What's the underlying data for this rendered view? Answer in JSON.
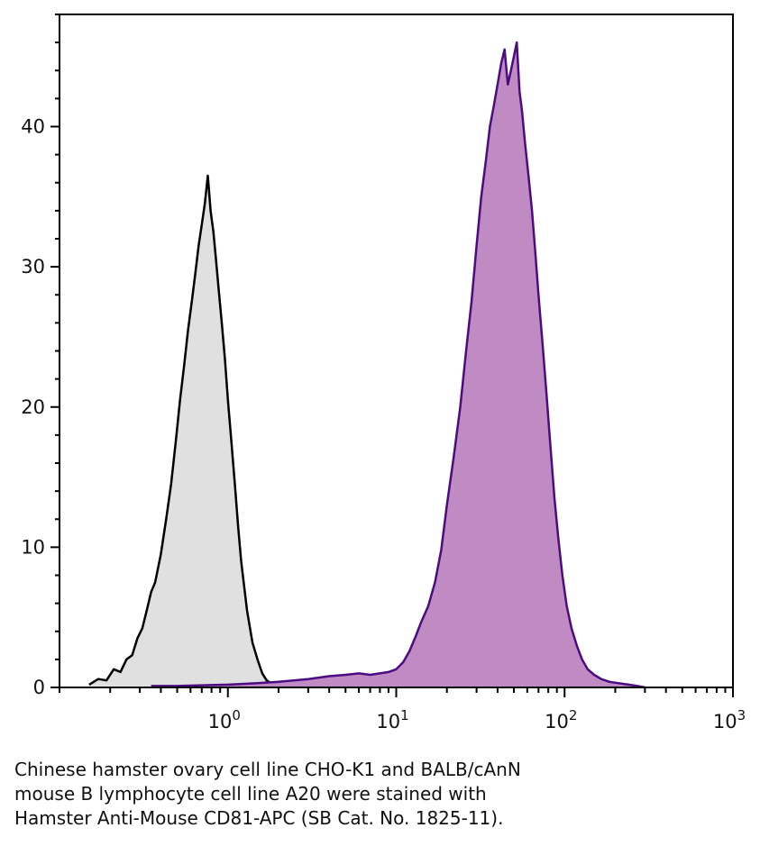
{
  "chart_data": {
    "type": "area",
    "title": "",
    "xlabel": "",
    "ylabel": "",
    "xscale": "log",
    "xlim": [
      0.1,
      1000
    ],
    "ylim": [
      0,
      48
    ],
    "grid": false,
    "legend": "none",
    "x_ticks": [
      {
        "value": 1,
        "base": "10",
        "exp": "0"
      },
      {
        "value": 10,
        "base": "10",
        "exp": "1"
      },
      {
        "value": 100,
        "base": "10",
        "exp": "2"
      },
      {
        "value": 1000,
        "base": "10",
        "exp": "3"
      }
    ],
    "y_ticks": [
      {
        "value": 0,
        "label": "0"
      },
      {
        "value": 10,
        "label": "10"
      },
      {
        "value": 20,
        "label": "20"
      },
      {
        "value": 30,
        "label": "30"
      },
      {
        "value": 40,
        "label": "40"
      }
    ],
    "series": [
      {
        "fill": "#e0e0e0",
        "stroke": "#000000",
        "x": [
          0.15,
          0.17,
          0.19,
          0.21,
          0.23,
          0.25,
          0.27,
          0.29,
          0.31,
          0.33,
          0.35,
          0.37,
          0.4,
          0.43,
          0.46,
          0.49,
          0.52,
          0.55,
          0.58,
          0.61,
          0.64,
          0.67,
          0.7,
          0.73,
          0.76,
          0.79,
          0.82,
          0.85,
          0.88,
          0.92,
          0.96,
          1.0,
          1.05,
          1.1,
          1.15,
          1.2,
          1.3,
          1.4,
          1.5,
          1.6,
          1.7,
          1.8,
          2.0
        ],
        "y": [
          0.2,
          0.6,
          0.5,
          1.3,
          1.1,
          2.0,
          2.3,
          3.5,
          4.2,
          5.5,
          6.8,
          7.5,
          9.5,
          12.0,
          14.5,
          17.5,
          20.5,
          23.0,
          25.5,
          27.5,
          29.5,
          31.5,
          33.0,
          34.5,
          36.5,
          34.0,
          32.5,
          30.5,
          28.5,
          26.0,
          23.5,
          20.5,
          17.5,
          14.5,
          11.5,
          9.0,
          5.5,
          3.2,
          2.0,
          1.0,
          0.5,
          0.3,
          0.1
        ]
      },
      {
        "fill": "#c08bc3",
        "stroke": "#4b0c82",
        "x": [
          0.35,
          0.5,
          1.0,
          1.5,
          2.0,
          3.0,
          4.0,
          5.0,
          6.0,
          7.0,
          8.0,
          9.0,
          10.0,
          11.0,
          12.0,
          13.0,
          14.0,
          15.5,
          17.0,
          18.5,
          20.0,
          22.0,
          24.0,
          26.0,
          28.0,
          30.0,
          32.0,
          34.0,
          36.0,
          38.0,
          40.0,
          42.0,
          44.0,
          46.0,
          48.0,
          50.0,
          52.0,
          54.0,
          56.0,
          58.0,
          61.0,
          64.0,
          67.0,
          70.0,
          74.0,
          78.0,
          82.0,
          87.0,
          92.0,
          97.0,
          103.0,
          110.0,
          118.0,
          127.0,
          137.0,
          150.0,
          165.0,
          185.0,
          210.0,
          240.0,
          270.0,
          300.0
        ],
        "y": [
          0.1,
          0.1,
          0.2,
          0.3,
          0.4,
          0.6,
          0.8,
          0.9,
          1.0,
          0.9,
          1.0,
          1.1,
          1.3,
          1.8,
          2.6,
          3.6,
          4.6,
          5.8,
          7.5,
          9.8,
          13.0,
          16.5,
          20.0,
          24.0,
          27.5,
          31.5,
          35.0,
          37.5,
          40.0,
          41.5,
          43.0,
          44.5,
          45.5,
          43.0,
          44.0,
          45.0,
          46.0,
          42.5,
          41.0,
          39.0,
          36.5,
          34.0,
          31.0,
          28.0,
          24.5,
          21.0,
          17.5,
          13.5,
          10.5,
          8.0,
          5.8,
          4.2,
          3.0,
          2.0,
          1.3,
          0.9,
          0.6,
          0.4,
          0.3,
          0.2,
          0.1,
          0.0
        ]
      }
    ]
  },
  "caption": {
    "lines": [
      "Chinese hamster ovary cell line CHO-K1 and BALB/cAnN",
      "mouse B lymphocyte cell line A20 were stained with",
      "Hamster Anti-Mouse CD81-APC (SB Cat. No. 1825-11)."
    ]
  }
}
